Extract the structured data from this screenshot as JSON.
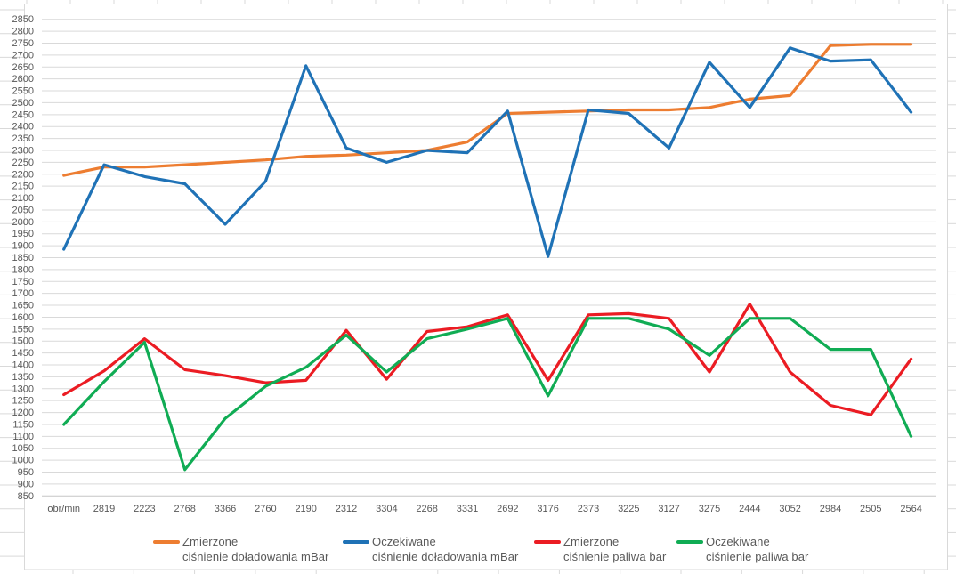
{
  "chart_data": {
    "type": "line",
    "title": "",
    "x_axis_first_label": "obr/min",
    "categories": [
      "obr/min",
      "2819",
      "2223",
      "2768",
      "3366",
      "2760",
      "2190",
      "2312",
      "3304",
      "2268",
      "3331",
      "2692",
      "3176",
      "2373",
      "3225",
      "3127",
      "3275",
      "2444",
      "3052",
      "2984",
      "2505",
      "2564"
    ],
    "series": [
      {
        "name": "Zmierzone ciśnienie doładowania mBar",
        "legend_line1": "Zmierzone",
        "legend_line2": "ciśnienie doładowania mBar",
        "color": "#ED7D31",
        "values": [
          2195,
          2230,
          2230,
          2240,
          2250,
          2260,
          2275,
          2280,
          2290,
          2300,
          2335,
          2455,
          2460,
          2465,
          2470,
          2470,
          2480,
          2515,
          2530,
          2740,
          2745,
          2745
        ]
      },
      {
        "name": "Oczekiwane ciśnienie doładowania mBar",
        "legend_line1": "Oczekiwane",
        "legend_line2": "ciśnienie doładowania mBar",
        "color": "#1F72B6",
        "values": [
          1885,
          2240,
          2190,
          2160,
          1990,
          2170,
          2655,
          2310,
          2250,
          2300,
          2290,
          2465,
          1855,
          2470,
          2455,
          2310,
          2670,
          2480,
          2730,
          2675,
          2680,
          2460
        ]
      },
      {
        "name": "Zmierzone ciśnienie paliwa bar",
        "legend_line1": "Zmierzone",
        "legend_line2": "ciśnienie paliwa bar",
        "color": "#EB1C23",
        "values": [
          1275,
          1375,
          1510,
          1380,
          1355,
          1325,
          1335,
          1545,
          1340,
          1540,
          1560,
          1610,
          1335,
          1610,
          1615,
          1595,
          1370,
          1655,
          1370,
          1230,
          1190,
          1425
        ]
      },
      {
        "name": "Oczekiwane ciśnienie paliwa bar",
        "legend_line1": "Oczekiwane",
        "legend_line2": "ciśnienie paliwa bar",
        "color": "#10AC54",
        "values": [
          1150,
          1330,
          1495,
          960,
          1175,
          1310,
          1390,
          1525,
          1370,
          1510,
          1550,
          1595,
          1270,
          1595,
          1595,
          1550,
          1440,
          1595,
          1595,
          1465,
          1465,
          1100
        ]
      }
    ],
    "ylim": [
      850,
      2850
    ],
    "y_tick_step": 50,
    "grid": true,
    "legend_position": "bottom"
  },
  "colors": {
    "background": "#FFFFFF",
    "gridline": "#D9D9D9",
    "axis_line": "#C6C6C6",
    "tick_text": "#595959",
    "legend_text": "#595959",
    "sheet_gridline": "#D9D9D9",
    "chart_border": "#D9D9D9"
  }
}
